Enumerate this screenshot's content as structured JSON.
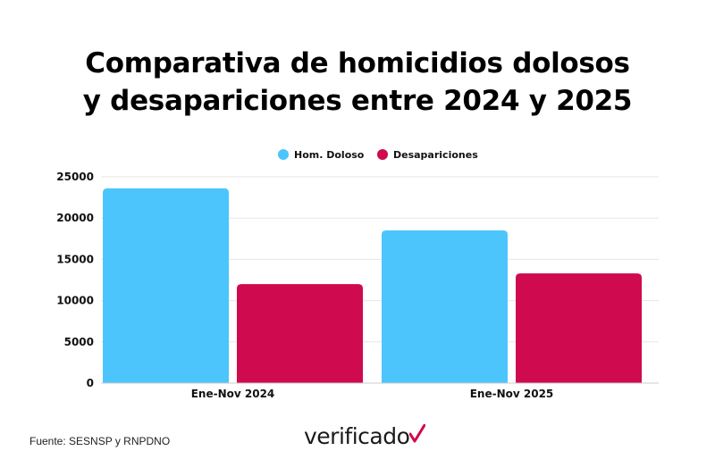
{
  "title_line1": "Comparativa de homicidios dolosos",
  "title_line2": "y desapariciones entre 2024 y 2025",
  "chart_data": {
    "type": "bar",
    "categories": [
      "Ene-Nov 2024",
      "Ene-Nov 2025"
    ],
    "series": [
      {
        "name": "Hom. Doloso",
        "values": [
          23600,
          18500
        ],
        "color": "#4cc5fc"
      },
      {
        "name": "Desapariciones",
        "values": [
          12000,
          13300
        ],
        "color": "#cf0a4e"
      }
    ],
    "ylim": [
      0,
      25000
    ],
    "yticks": [
      0,
      5000,
      10000,
      15000,
      20000,
      25000
    ],
    "legend_position": "top",
    "grid": true
  },
  "source": "Fuente: SESNSP y RNPDNO",
  "logo": {
    "text": "verificado",
    "icon": "check-mark-icon",
    "color": "#cf0a4e"
  }
}
